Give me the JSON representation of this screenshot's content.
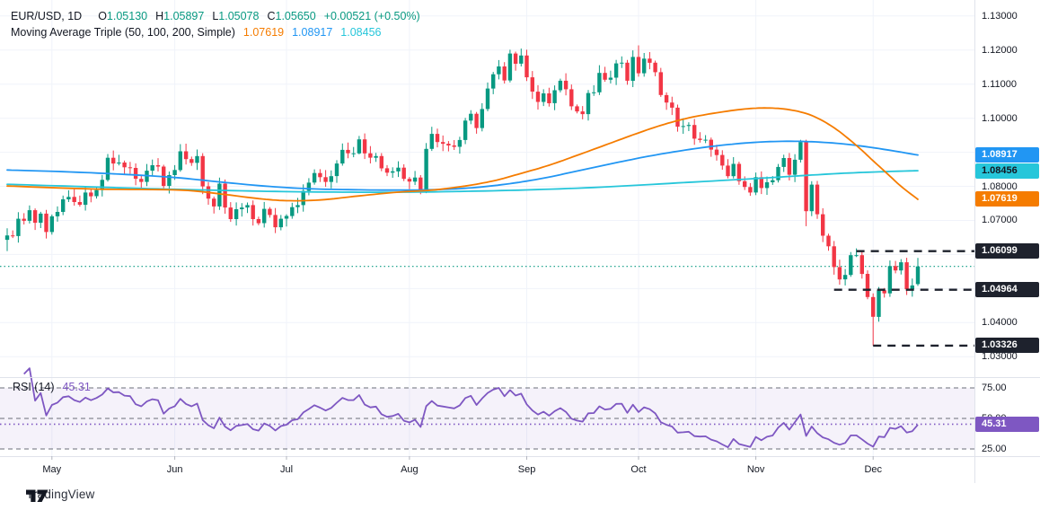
{
  "colors": {
    "bull": "#089981",
    "bear": "#f23645",
    "ma50": "#f57c00",
    "ma100": "#2196f3",
    "ma200": "#26c6da",
    "rsi": "#7e57c2",
    "rsi_band_line": "#6a6d78",
    "rsi_band_fill": "rgba(126,87,194,0.08)",
    "level": "#1e222d",
    "grid": "#f0f3fa",
    "border": "#e0e3eb",
    "axis_text": "#131722",
    "close_line": "#089981",
    "tick": "#b2b5be"
  },
  "legend": {
    "title": "EUR/USD, 1D",
    "o_key": "O",
    "o_val": "1.05130",
    "h_key": "H",
    "h_val": "1.05897",
    "l_key": "L",
    "l_val": "1.05078",
    "c_key": "C",
    "c_val": "1.05650",
    "change": "+0.00521 (+0.50%)"
  },
  "ma_legend": {
    "label": "Moving Average Triple (50, 100, 200, Simple)",
    "ma50": "1.07619",
    "ma100": "1.08917",
    "ma200": "1.08456"
  },
  "rsi_legend": {
    "label": "RSI (14)",
    "value": "45.31"
  },
  "watermark": {
    "brand": "TradingView"
  },
  "price_axis": {
    "gridlines": [
      {
        "label": "1.13000",
        "value": 1.13
      },
      {
        "label": "1.12000",
        "value": 1.12
      },
      {
        "label": "1.11000",
        "value": 1.11
      },
      {
        "label": "1.10000",
        "value": 1.1
      },
      {
        "label": "1.09000",
        "value": 1.09
      },
      {
        "label": "1.08000",
        "value": 1.08
      },
      {
        "label": "1.07000",
        "value": 1.07
      },
      {
        "label": "1.06000",
        "value": 1.06
      },
      {
        "label": "1.05000",
        "value": 1.05
      },
      {
        "label": "1.04000",
        "value": 1.04
      },
      {
        "label": "1.03000",
        "value": 1.03
      }
    ],
    "badges": [
      {
        "text": "1.08917",
        "price": 1.08917,
        "bg": "ma100",
        "fg": "#ffffff"
      },
      {
        "text": "1.08456",
        "price": 1.08456,
        "bg": "ma200",
        "fg": "#131722"
      },
      {
        "text": "1.07619",
        "price": 1.07619,
        "bg": "ma50",
        "fg": "#ffffff"
      },
      {
        "text": "1.06099",
        "price": 1.06099,
        "bg": "level",
        "fg": "#ffffff"
      },
      {
        "text": "1.04964",
        "price": 1.04964,
        "bg": "level",
        "fg": "#ffffff"
      },
      {
        "text": "1.03326",
        "price": 1.03326,
        "bg": "level",
        "fg": "#ffffff"
      }
    ]
  },
  "rsi_axis": {
    "gridlines": [
      {
        "label": "75.00",
        "value": 75
      },
      {
        "label": "50.00",
        "value": 50
      },
      {
        "label": "25.00",
        "value": 25
      }
    ],
    "badge": {
      "text": "45.31",
      "value": 45.31
    }
  },
  "time_axis": {
    "months": [
      {
        "label": "May",
        "index": 8
      },
      {
        "label": "Jun",
        "index": 30
      },
      {
        "label": "Jul",
        "index": 50
      },
      {
        "label": "Aug",
        "index": 72
      },
      {
        "label": "Sep",
        "index": 93
      },
      {
        "label": "Oct",
        "index": 113
      },
      {
        "label": "Nov",
        "index": 134
      },
      {
        "label": "Dec",
        "index": 155
      }
    ]
  },
  "chart_data": {
    "type": "candlestick",
    "symbol": "EUR/USD",
    "interval": "1D",
    "today": {
      "open": 1.0513,
      "high": 1.05897,
      "low": 1.05078,
      "close": 1.0565,
      "change": 0.00521,
      "change_pct": 0.5
    },
    "pane_price": {
      "ylim": [
        1.024,
        1.1347
      ],
      "grid_step": 0.01,
      "close_line": 1.0565,
      "levels": [
        {
          "price": 1.06099,
          "from_index": 152
        },
        {
          "price": 1.04964,
          "from_index": 148
        },
        {
          "price": 1.03326,
          "from_index": 155
        }
      ],
      "candles": {
        "first_open": 1.0643,
        "closes": [
          1.0656,
          1.0654,
          1.0705,
          1.0699,
          1.073,
          1.0693,
          1.072,
          1.0666,
          1.0712,
          1.0725,
          1.0762,
          1.0769,
          1.0754,
          1.0746,
          1.0782,
          1.0771,
          1.0789,
          1.0819,
          1.0884,
          1.0867,
          1.087,
          1.0856,
          1.0854,
          1.0822,
          1.0813,
          1.0846,
          1.0862,
          1.0858,
          1.0801,
          1.0833,
          1.0848,
          1.0903,
          1.088,
          1.0869,
          1.0889,
          1.08,
          1.0764,
          1.0741,
          1.0808,
          1.0738,
          1.0704,
          1.0733,
          1.0738,
          1.0745,
          1.0704,
          1.0692,
          1.0734,
          1.0716,
          1.068,
          1.0705,
          1.0713,
          1.0739,
          1.0745,
          1.0787,
          1.0811,
          1.0839,
          1.0827,
          1.0813,
          1.083,
          1.0867,
          1.0907,
          1.0897,
          1.0897,
          1.0938,
          1.0897,
          1.0884,
          1.0889,
          1.0853,
          1.084,
          1.0844,
          1.0855,
          1.0822,
          1.0814,
          1.0826,
          1.0789,
          1.091,
          1.0954,
          1.093,
          1.0925,
          1.092,
          1.0916,
          1.0936,
          1.0993,
          1.1013,
          1.0971,
          1.1027,
          1.1087,
          1.1129,
          1.1152,
          1.1111,
          1.119,
          1.116,
          1.1184,
          1.112,
          1.1078,
          1.1048,
          1.1073,
          1.1044,
          1.1082,
          1.111,
          1.1085,
          1.1035,
          1.102,
          1.1012,
          1.1074,
          1.1076,
          1.1133,
          1.1113,
          1.1119,
          1.1161,
          1.1163,
          1.111,
          1.118,
          1.1132,
          1.1175,
          1.1163,
          1.1135,
          1.1068,
          1.1046,
          1.1031,
          1.0975,
          1.0977,
          1.098,
          1.094,
          1.0936,
          1.0937,
          1.0908,
          1.0892,
          1.0861,
          1.083,
          1.0866,
          1.0815,
          1.0798,
          1.0782,
          1.0827,
          1.0795,
          1.0812,
          1.0818,
          1.0857,
          1.0883,
          1.0834,
          1.0878,
          1.093,
          1.0727,
          1.0805,
          1.0718,
          1.0655,
          1.0624,
          1.0563,
          1.0527,
          1.054,
          1.0598,
          1.0598,
          1.0543,
          1.0475,
          1.0417,
          1.0495,
          1.0486,
          1.0566,
          1.0553,
          1.0577,
          1.0498,
          1.0509,
          1.0565
        ],
        "overrides": {
          "0": [
            1.0643,
            1.0677,
            1.061,
            1.0656
          ],
          "18": [
            1.0819,
            1.0895,
            1.0814,
            1.0884
          ],
          "63": [
            1.0897,
            1.0948,
            1.0894,
            1.0938
          ],
          "74": [
            1.0826,
            1.0833,
            1.0777,
            1.0789
          ],
          "75": [
            1.0789,
            1.0927,
            1.078,
            1.091
          ],
          "90": [
            1.1111,
            1.1201,
            1.1105,
            1.119
          ],
          "113": [
            1.118,
            1.1214,
            1.1122,
            1.1132
          ],
          "143": [
            1.093,
            1.0937,
            1.0683,
            1.0727
          ],
          "155": [
            1.0475,
            1.0486,
            1.03326,
            1.0417
          ],
          "163": [
            1.0513,
            1.05897,
            1.05078,
            1.0565
          ]
        }
      },
      "sma": {
        "ma50": {
          "period": 50,
          "last": 1.07619,
          "points": [
            [
              0,
              1.0801
            ],
            [
              16,
              1.0792
            ],
            [
              31,
              1.0789
            ],
            [
              39,
              1.0776
            ],
            [
              45,
              1.0764
            ],
            [
              50,
              1.0758
            ],
            [
              56,
              1.076
            ],
            [
              63,
              1.0772
            ],
            [
              70,
              1.0783
            ],
            [
              76,
              1.0789
            ],
            [
              82,
              1.0801
            ],
            [
              87,
              1.0816
            ],
            [
              92,
              1.0838
            ],
            [
              97,
              1.0862
            ],
            [
              102,
              1.0891
            ],
            [
              107,
              1.0921
            ],
            [
              112,
              1.0951
            ],
            [
              117,
              1.0979
            ],
            [
              122,
              1.1001
            ],
            [
              127,
              1.1016
            ],
            [
              132,
              1.1027
            ],
            [
              136,
              1.103
            ],
            [
              140,
              1.1025
            ],
            [
              144,
              1.1008
            ],
            [
              148,
              1.0972
            ],
            [
              152,
              1.092
            ],
            [
              155,
              1.0875
            ],
            [
              158,
              1.083
            ],
            [
              160,
              1.08
            ],
            [
              163,
              1.0762
            ]
          ]
        },
        "ma100": {
          "period": 100,
          "last": 1.08917,
          "points": [
            [
              0,
              1.0848
            ],
            [
              10,
              1.0843
            ],
            [
              20,
              1.0836
            ],
            [
              30,
              1.0826
            ],
            [
              38,
              1.0813
            ],
            [
              46,
              1.0801
            ],
            [
              54,
              1.0793
            ],
            [
              62,
              1.079
            ],
            [
              70,
              1.0789
            ],
            [
              78,
              1.0791
            ],
            [
              84,
              1.0797
            ],
            [
              90,
              1.0808
            ],
            [
              96,
              1.0824
            ],
            [
              102,
              1.0845
            ],
            [
              108,
              1.0866
            ],
            [
              114,
              1.0886
            ],
            [
              120,
              1.0903
            ],
            [
              126,
              1.0917
            ],
            [
              132,
              1.0927
            ],
            [
              138,
              1.0932
            ],
            [
              144,
              1.0931
            ],
            [
              150,
              1.0924
            ],
            [
              156,
              1.0911
            ],
            [
              163,
              1.0892
            ]
          ]
        },
        "ma200": {
          "period": 200,
          "last": 1.08456,
          "points": [
            [
              0,
              1.0806
            ],
            [
              12,
              1.08
            ],
            [
              24,
              1.0794
            ],
            [
              36,
              1.0789
            ],
            [
              48,
              1.0785
            ],
            [
              60,
              1.0783
            ],
            [
              72,
              1.0783
            ],
            [
              84,
              1.0786
            ],
            [
              96,
              1.0791
            ],
            [
              108,
              1.0799
            ],
            [
              120,
              1.081
            ],
            [
              132,
              1.0821
            ],
            [
              140,
              1.0829
            ],
            [
              148,
              1.0837
            ],
            [
              155,
              1.0842
            ],
            [
              163,
              1.0846
            ]
          ]
        }
      }
    },
    "pane_rsi": {
      "indicator": "RSI",
      "period": 14,
      "current": 45.31,
      "ylim": [
        19.1,
        83.1
      ],
      "bands": [
        25,
        50,
        75
      ],
      "band_fill_range": [
        25,
        75
      ]
    },
    "x": {
      "count": 164
    }
  }
}
